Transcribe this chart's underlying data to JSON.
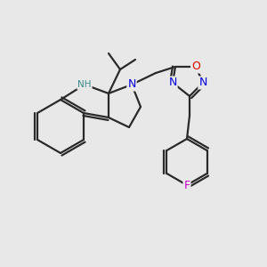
{
  "bg_color": "#e8e8e8",
  "bond_color": "#2a2a2a",
  "bond_width": 1.6,
  "atom_colors": {
    "N": "#0000dd",
    "NH": "#3a8a8a",
    "O": "#dd0000",
    "F": "#cc00cc",
    "C": "#2a2a2a"
  },
  "font_size": 8.5,
  "fig_size": [
    3.0,
    3.0
  ],
  "dpi": 100
}
